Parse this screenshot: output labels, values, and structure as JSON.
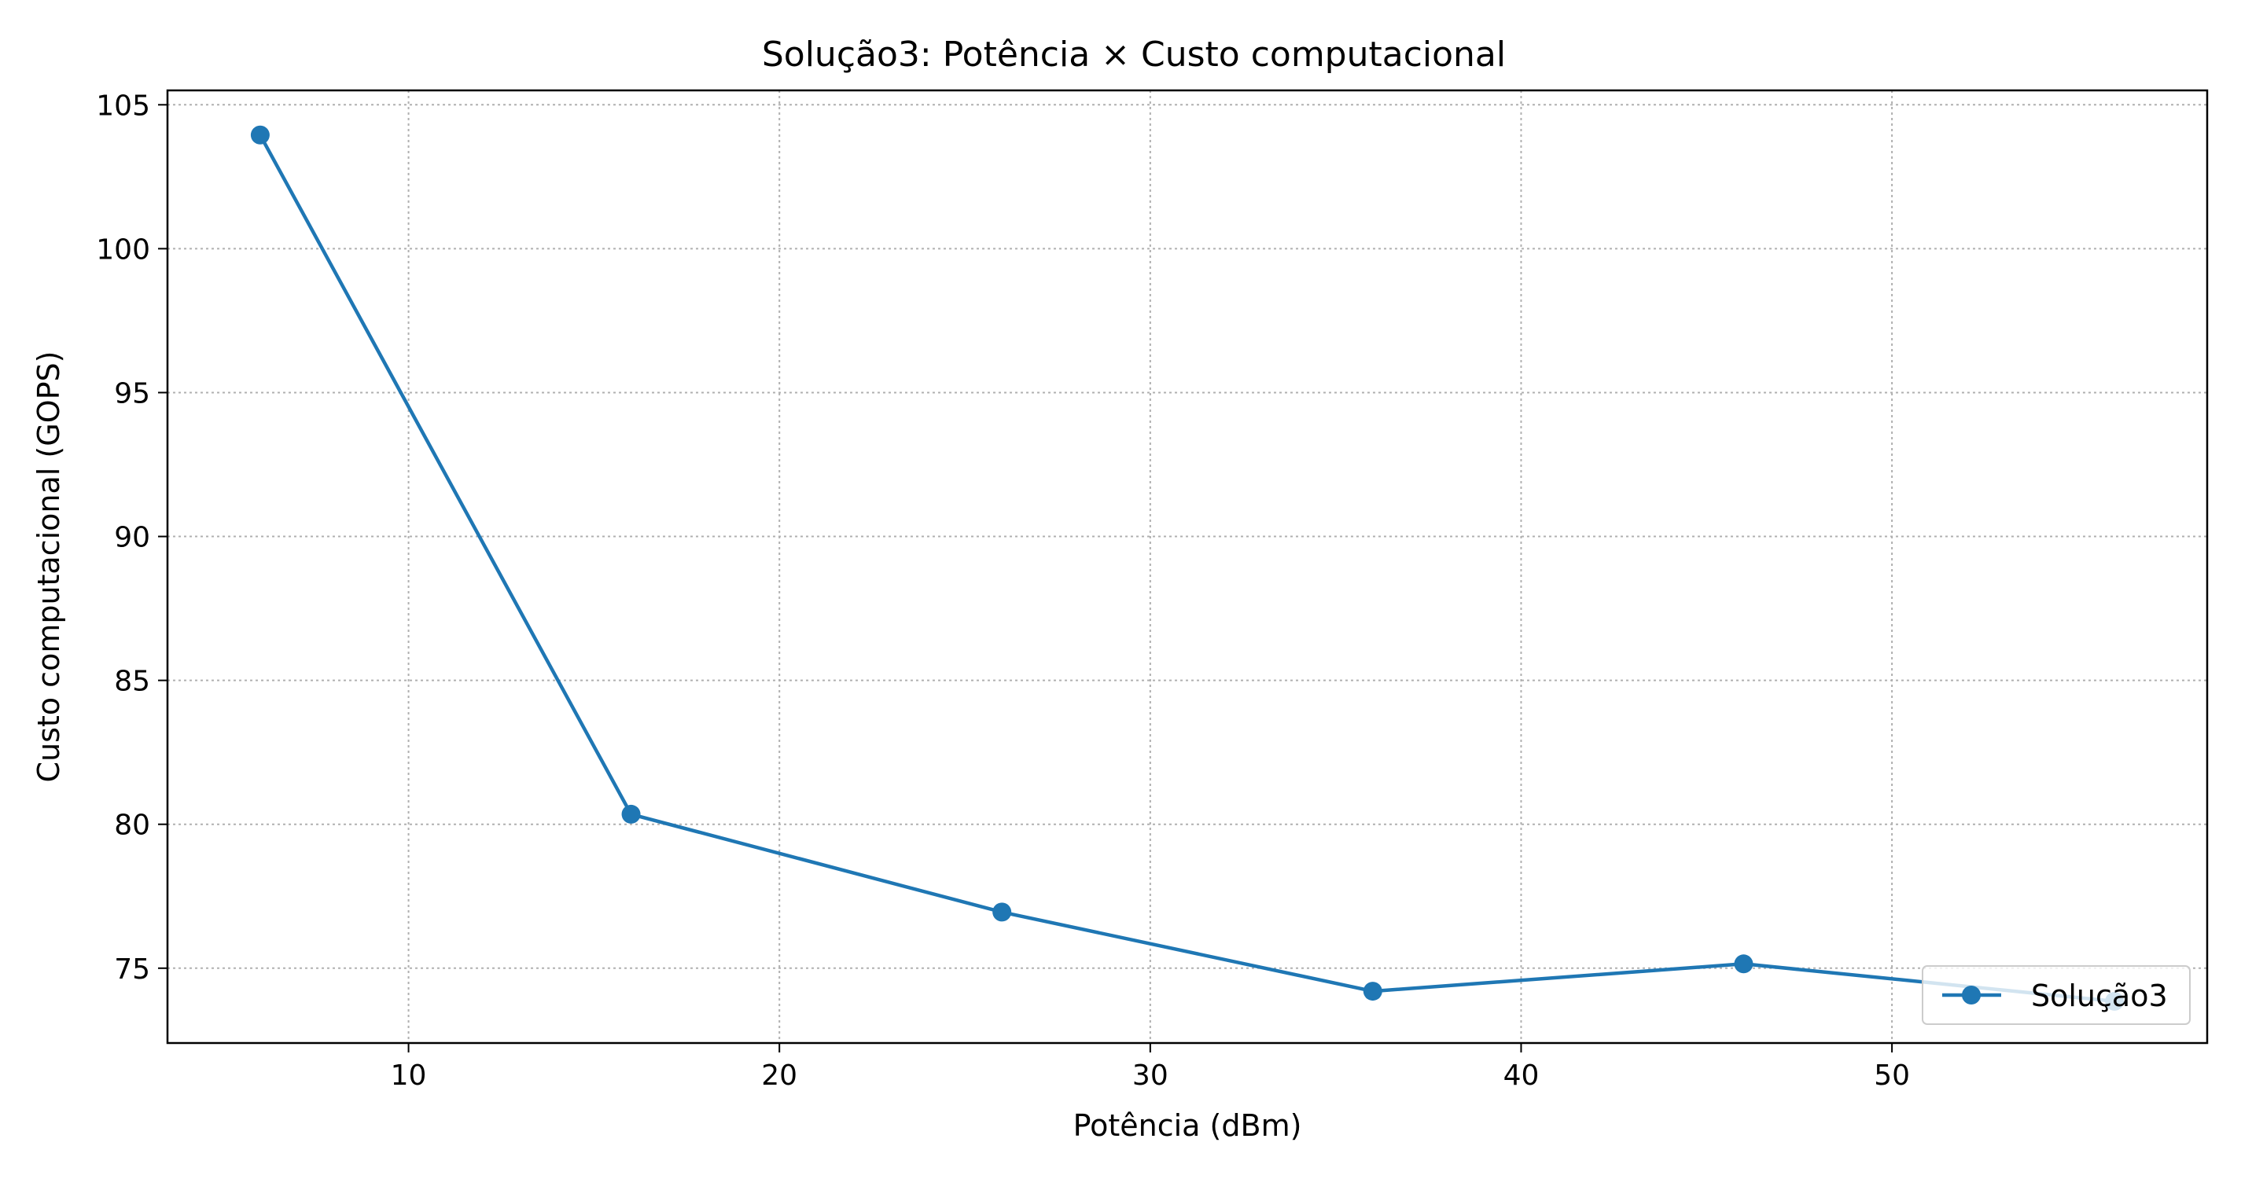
{
  "chart_data": {
    "type": "line",
    "title": "Solução3: Potência × Custo computacional",
    "xlabel": "Potência (dBm)",
    "ylabel": "Custo computacional (GOPS)",
    "xlim": [
      3.5,
      58.5
    ],
    "ylim": [
      72.4,
      105.5
    ],
    "xticks": [
      10,
      20,
      30,
      40,
      50
    ],
    "yticks": [
      75,
      80,
      85,
      90,
      95,
      100,
      105
    ],
    "grid": true,
    "legend_position": "lower-right",
    "series": [
      {
        "name": "Solução3",
        "color": "#1f77b4",
        "marker": "circle",
        "x": [
          6,
          16,
          26,
          36,
          46,
          56
        ],
        "y": [
          103.95,
          80.35,
          76.95,
          74.2,
          75.15,
          73.85
        ]
      }
    ]
  }
}
